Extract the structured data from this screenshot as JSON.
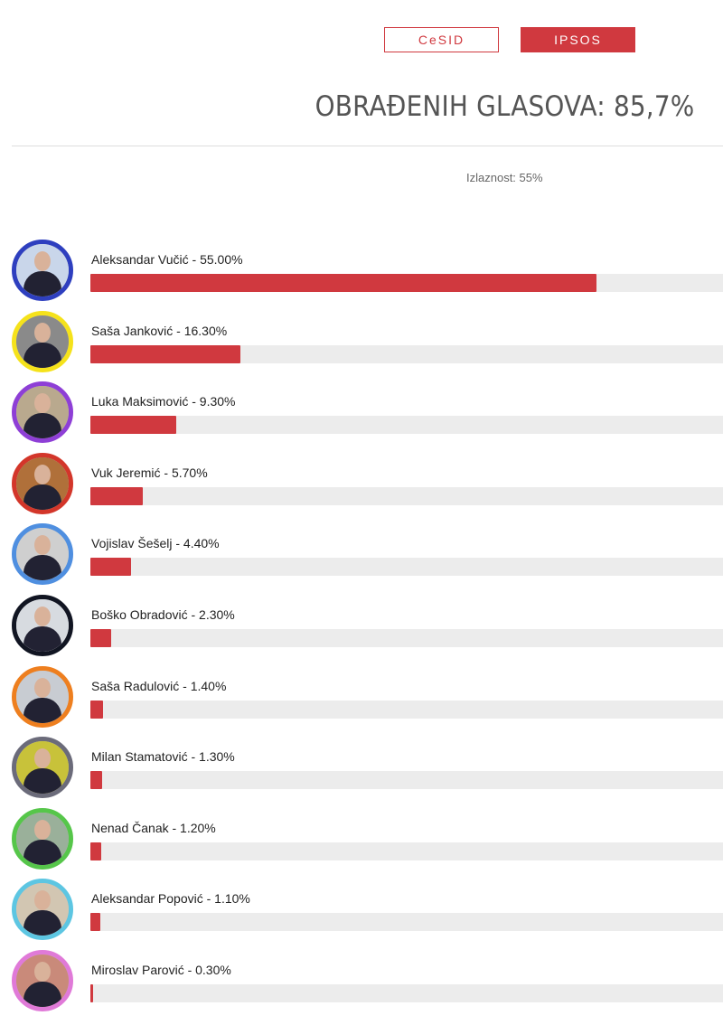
{
  "tabs": {
    "cesid": "CeSID",
    "ipsos": "IPSOS"
  },
  "processed_label": "OBRAĐENIH GLASOVA: 85,7%",
  "turnout_label": "Izlaznost: 55%",
  "colors": {
    "accent": "#d0393f",
    "track": "#ececec"
  },
  "candidates": [
    {
      "label": "Aleksandar Vučić - 55.00%",
      "value": 55.0,
      "ring": "#2e3fbf",
      "bg": "#c9d6ea"
    },
    {
      "label": "Saša Janković - 16.30%",
      "value": 16.3,
      "ring": "#f5e21b",
      "bg": "#8a8a8a"
    },
    {
      "label": "Luka Maksimović - 9.30%",
      "value": 9.3,
      "ring": "#8e3fd6",
      "bg": "#b9a98e"
    },
    {
      "label": "Vuk Jeremić - 5.70%",
      "value": 5.7,
      "ring": "#d3362a",
      "bg": "#b0703a"
    },
    {
      "label": "Vojislav Šešelj - 4.40%",
      "value": 4.4,
      "ring": "#4f8fe0",
      "bg": "#cfcfcf"
    },
    {
      "label": "Boško Obradović - 2.30%",
      "value": 2.3,
      "ring": "#111522",
      "bg": "#d7dbe0"
    },
    {
      "label": "Saša Radulović - 1.40%",
      "value": 1.4,
      "ring": "#ee7f1f",
      "bg": "#c8ccd2"
    },
    {
      "label": "Milan Stamatović - 1.30%",
      "value": 1.3,
      "ring": "#6b6b7a",
      "bg": "#c8c23a"
    },
    {
      "label": "Nenad Čanak - 1.20%",
      "value": 1.2,
      "ring": "#56c64a",
      "bg": "#9ab09a"
    },
    {
      "label": "Aleksandar Popović - 1.10%",
      "value": 1.1,
      "ring": "#5dc6e2",
      "bg": "#d2c6b2"
    },
    {
      "label": "Miroslav Parović - 0.30%",
      "value": 0.3,
      "ring": "#e07ad8",
      "bg": "#c98a7a"
    }
  ]
}
